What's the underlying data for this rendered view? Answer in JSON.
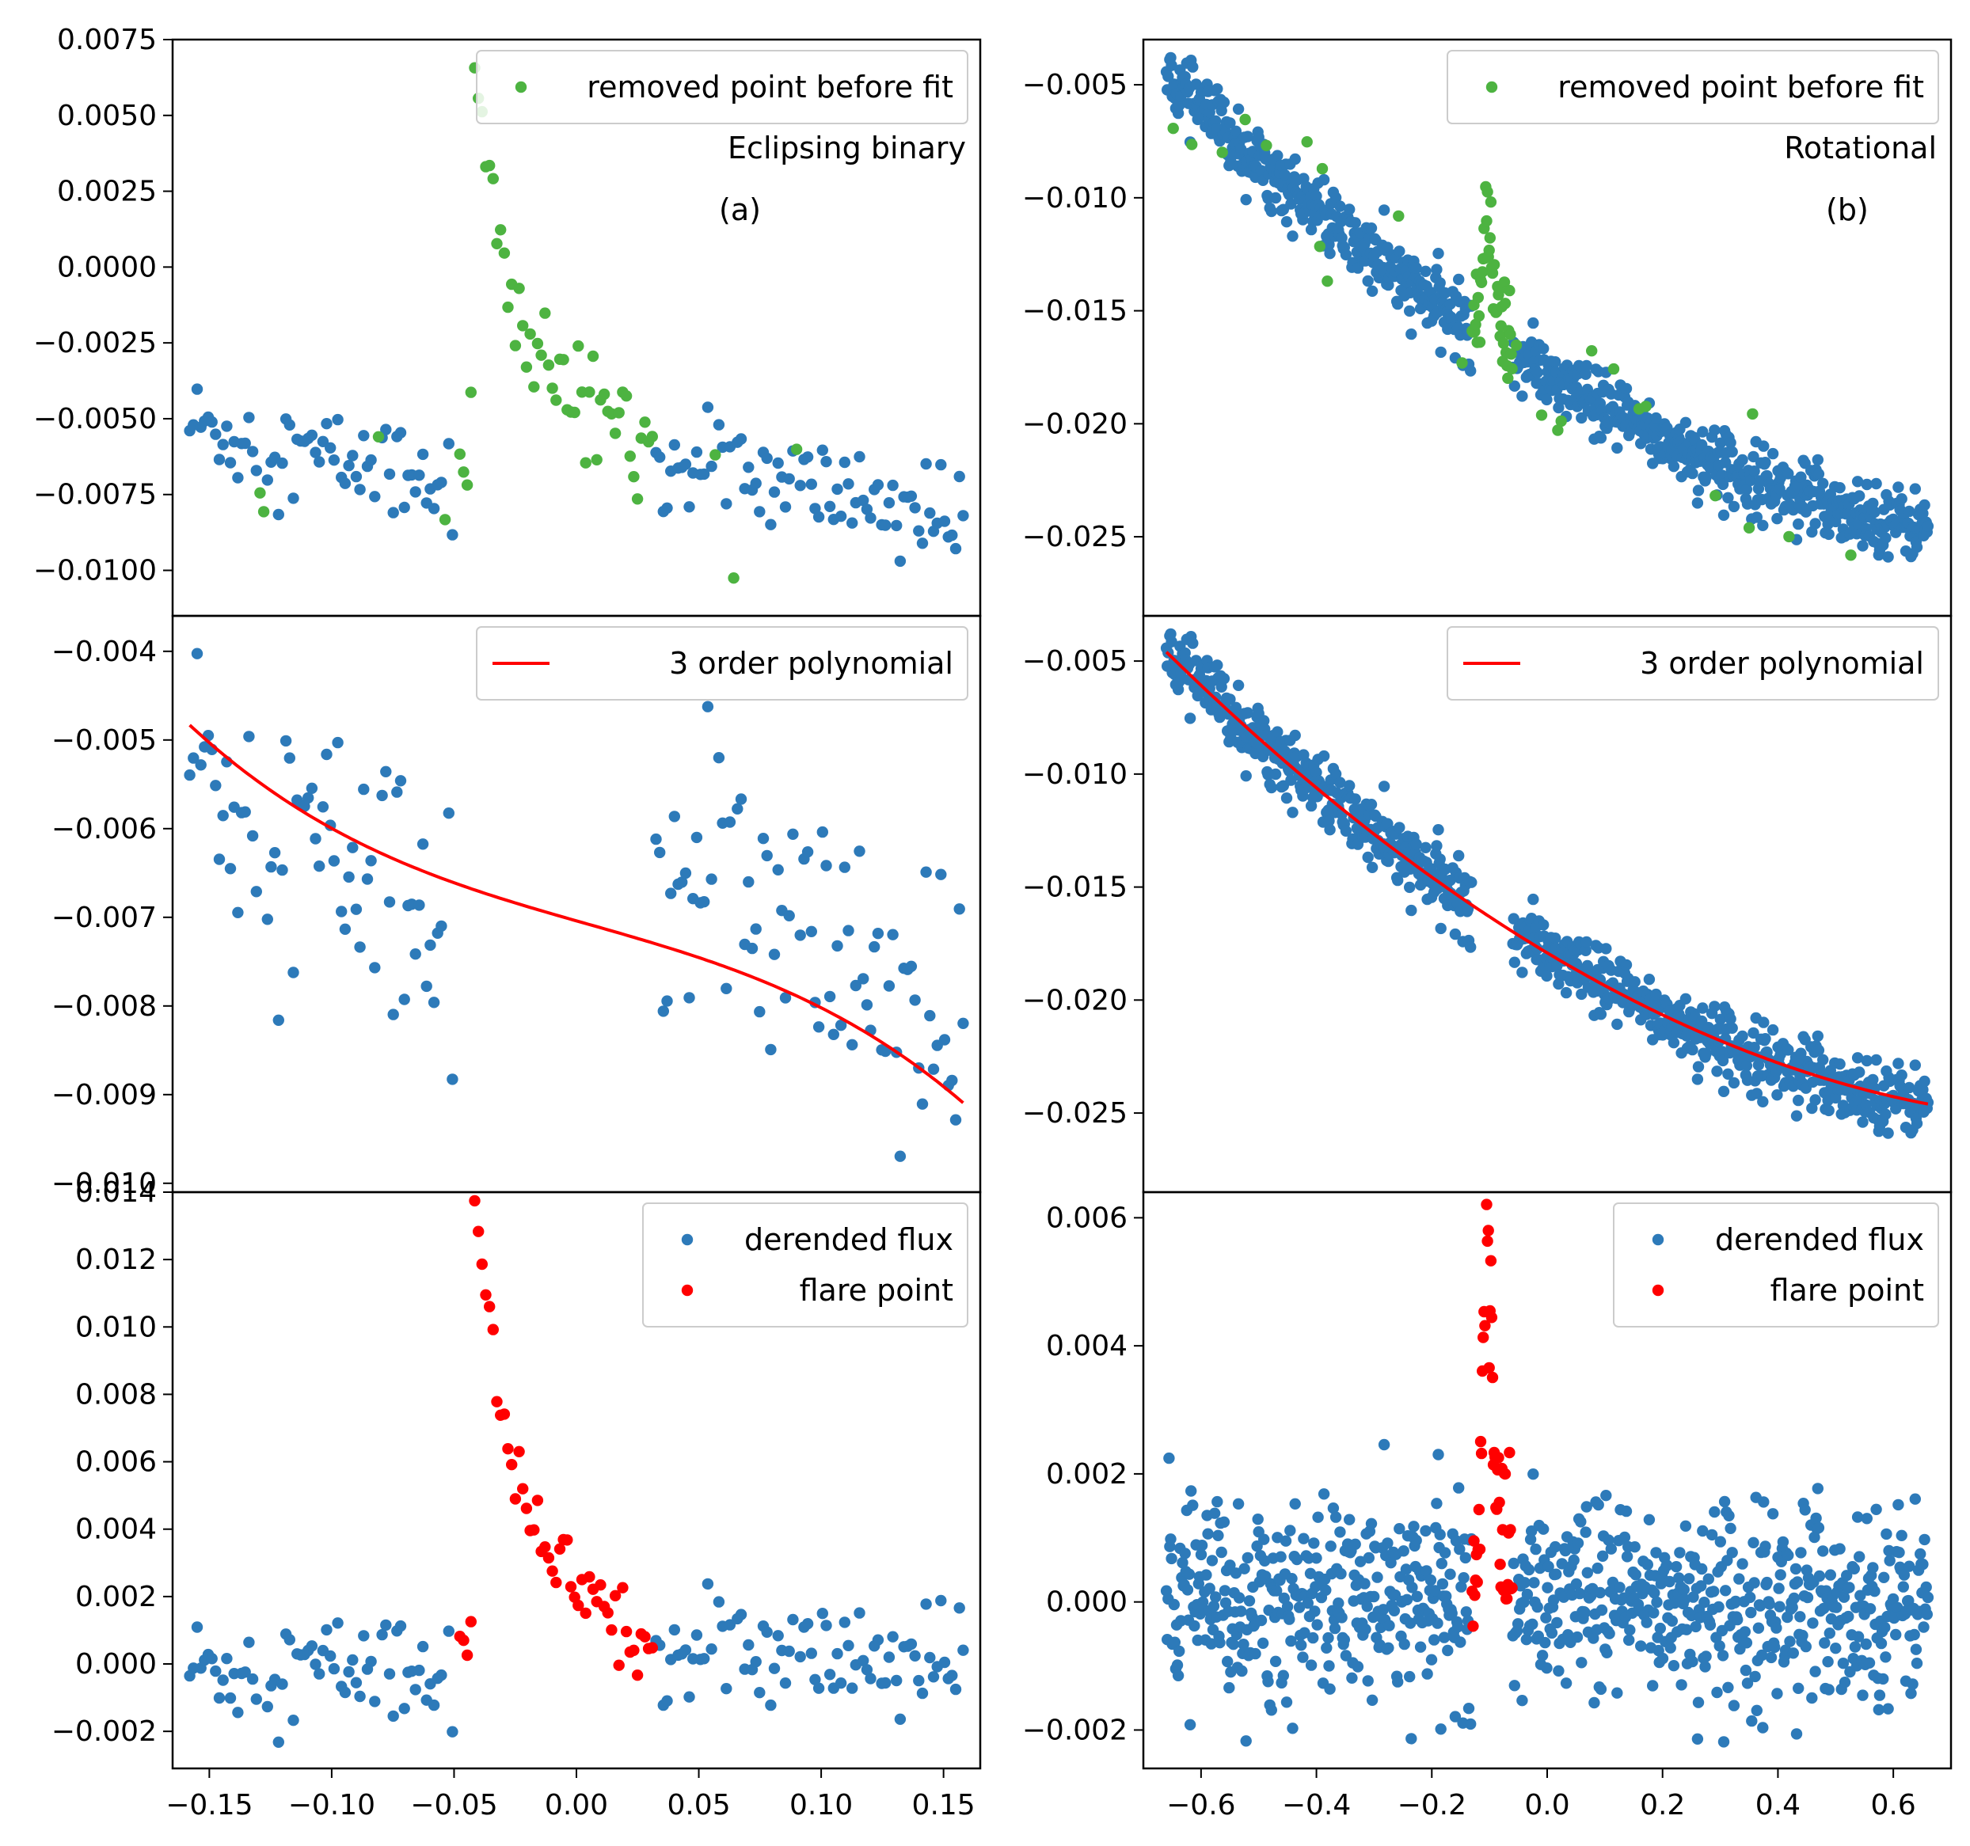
{
  "colors": {
    "blue": "#2d7ab9",
    "green": "#4db341",
    "red": "#ff0000"
  },
  "chart_data": [
    {
      "id": "a-top",
      "type": "scatter",
      "xlim": [
        -0.165,
        0.165
      ],
      "ylim": [
        -0.0115,
        0.0075
      ],
      "yticks": [
        "0.0075",
        "0.0050",
        "0.0025",
        "0.0000",
        "−0.0025",
        "−0.0050",
        "−0.0075",
        "−0.0100"
      ],
      "ytick_values": [
        0.0075,
        0.005,
        0.0025,
        0,
        -0.0025,
        -0.005,
        -0.0075,
        -0.01
      ],
      "legend": [
        {
          "label": "removed point before fit",
          "marker": "green"
        }
      ],
      "annotations": [
        "Eclipsing binary",
        "(a)"
      ]
    },
    {
      "id": "b-top",
      "type": "scatter",
      "xlim": [
        -0.7,
        0.7
      ],
      "ylim": [
        -0.0285,
        -0.003
      ],
      "yticks": [
        "−0.005",
        "−0.010",
        "−0.015",
        "−0.020",
        "−0.025"
      ],
      "ytick_values": [
        -0.005,
        -0.01,
        -0.015,
        -0.02,
        -0.025
      ],
      "legend": [
        {
          "label": "removed point before fit",
          "marker": "green"
        }
      ],
      "annotations": [
        "Rotational",
        "(b)"
      ]
    },
    {
      "id": "a-mid",
      "type": "scatter",
      "xlim": [
        -0.165,
        0.165
      ],
      "ylim": [
        -0.0101,
        -0.0036
      ],
      "yticks": [
        "−0.004",
        "−0.005",
        "−0.006",
        "−0.007",
        "−0.008",
        "−0.009",
        "−0.010"
      ],
      "ytick_values": [
        -0.004,
        -0.005,
        -0.006,
        -0.007,
        -0.008,
        -0.009,
        -0.01
      ],
      "legend": [
        {
          "label": "3 order polynomial",
          "marker": "line-red"
        }
      ],
      "annotations": []
    },
    {
      "id": "b-mid",
      "type": "scatter",
      "xlim": [
        -0.7,
        0.7
      ],
      "ylim": [
        -0.0285,
        -0.003
      ],
      "yticks": [
        "−0.005",
        "−0.010",
        "−0.015",
        "−0.020",
        "−0.025"
      ],
      "ytick_values": [
        -0.005,
        -0.01,
        -0.015,
        -0.02,
        -0.025
      ],
      "legend": [
        {
          "label": "3 order polynomial",
          "marker": "line-red"
        }
      ],
      "annotations": []
    },
    {
      "id": "a-bot",
      "type": "scatter",
      "xlim": [
        -0.165,
        0.165
      ],
      "ylim": [
        -0.0031,
        0.014
      ],
      "yticks": [
        "0.014",
        "0.012",
        "0.010",
        "0.008",
        "0.006",
        "0.004",
        "0.002",
        "0.000",
        "−0.002"
      ],
      "ytick_values": [
        0.014,
        0.012,
        0.01,
        0.008,
        0.006,
        0.004,
        0.002,
        0,
        -0.002
      ],
      "xticks": [
        "−0.15",
        "−0.10",
        "−0.05",
        "0.00",
        "0.05",
        "0.10",
        "0.15"
      ],
      "xtick_values": [
        -0.15,
        -0.1,
        -0.05,
        0,
        0.05,
        0.1,
        0.15
      ],
      "legend": [
        {
          "label": "derended flux",
          "marker": "blue"
        },
        {
          "label": "flare point",
          "marker": "red"
        }
      ],
      "annotations": []
    },
    {
      "id": "b-bot",
      "type": "scatter",
      "xlim": [
        -0.7,
        0.7
      ],
      "ylim": [
        -0.0026,
        0.0064
      ],
      "yticks": [
        "0.006",
        "0.004",
        "0.002",
        "0.000",
        "−0.002"
      ],
      "ytick_values": [
        0.006,
        0.004,
        0.002,
        0,
        -0.002
      ],
      "xticks": [
        "−0.6",
        "−0.4",
        "−0.2",
        "0.0",
        "0.2",
        "0.4",
        "0.6"
      ],
      "xtick_values": [
        -0.6,
        -0.4,
        -0.2,
        0,
        0.2,
        0.4,
        0.6
      ],
      "legend": [
        {
          "label": "derended flux",
          "marker": "blue"
        },
        {
          "label": "flare point",
          "marker": "red"
        }
      ],
      "annotations": []
    }
  ]
}
